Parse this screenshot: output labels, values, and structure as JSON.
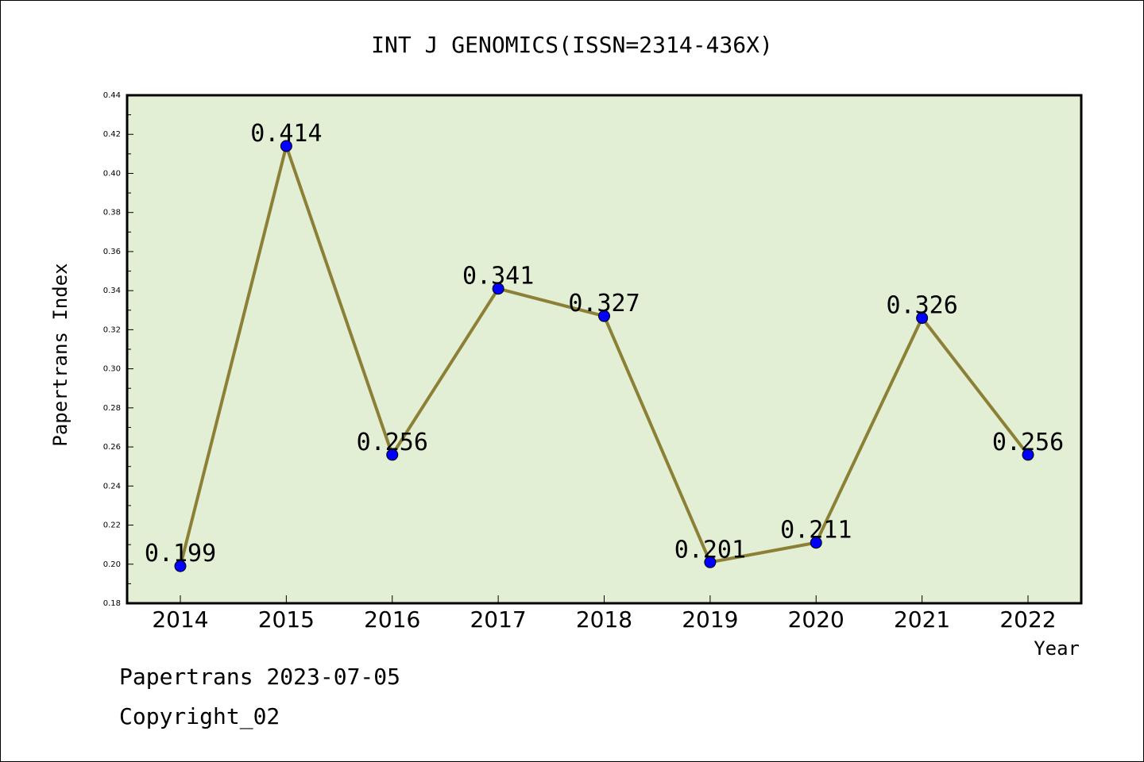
{
  "chart_data": {
    "type": "line",
    "title": "INT J GENOMICS(ISSN=2314-436X)",
    "xlabel": "Year",
    "ylabel": "Papertrans Index",
    "categories": [
      "2014",
      "2015",
      "2016",
      "2017",
      "2018",
      "2019",
      "2020",
      "2021",
      "2022"
    ],
    "series": [
      {
        "values": [
          0.199,
          0.414,
          0.256,
          0.341,
          0.327,
          0.201,
          0.211,
          0.326,
          0.256
        ]
      }
    ],
    "data_labels": [
      "0.199",
      "0.414",
      "0.256",
      "0.341",
      "0.327",
      "0.201",
      "0.211",
      "0.326",
      "0.256"
    ],
    "ylim": [
      0.18,
      0.44
    ],
    "yticks": [
      "0.18",
      "0.20",
      "0.22",
      "0.24",
      "0.26",
      "0.28",
      "0.30",
      "0.32",
      "0.34",
      "0.36",
      "0.38",
      "0.40",
      "0.42",
      "0.44"
    ],
    "grid": false,
    "legend": "none",
    "colors": {
      "plot_background": "#e2efd4",
      "line": "#8b8035",
      "marker": "#0000ff"
    }
  },
  "footer": {
    "line1": "Papertrans 2023-07-05",
    "line2": "Copyright_02"
  }
}
